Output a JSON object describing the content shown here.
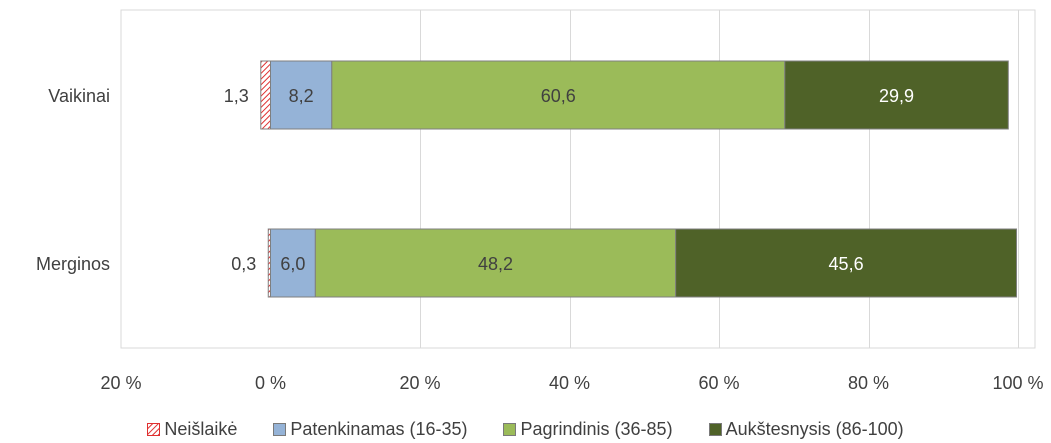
{
  "chart_data": {
    "type": "bar",
    "orientation": "horizontal",
    "stacked": true,
    "categories": [
      "Vaikinai",
      "Merginos"
    ],
    "series": [
      {
        "name": "Neišlaikė",
        "values": [
          1.3,
          0.3
        ],
        "direction": "negative",
        "color": "#e03030",
        "pattern": "hatch"
      },
      {
        "name": "Patenkinamas (16-35)",
        "values": [
          8.2,
          6.0
        ],
        "color": "#95b3d7"
      },
      {
        "name": "Pagrindinis (36-85)",
        "values": [
          60.6,
          48.2
        ],
        "color": "#9bbb59"
      },
      {
        "name": "Aukštesnysis (86-100)",
        "values": [
          29.9,
          45.6
        ],
        "color": "#4f6228"
      }
    ],
    "data_labels": [
      [
        "1,3",
        "8,2",
        "60,6",
        "29,9"
      ],
      [
        "0,3",
        "6,0",
        "48,2",
        "45,6"
      ]
    ],
    "xlim": [
      -20,
      100
    ],
    "xticks": [
      -20,
      0,
      20,
      40,
      60,
      80,
      100
    ],
    "xtick_labels": [
      "20 %",
      "0 %",
      "20 %",
      "40 %",
      "60 %",
      "80 %",
      "100 %"
    ],
    "grid": true,
    "legend_position": "bottom",
    "colors": {
      "label_light": "#ffffff",
      "label_dark": "#404040",
      "axis_text": "#404040",
      "grid": "#d9d9d9",
      "border": "#7f7f7f"
    }
  }
}
